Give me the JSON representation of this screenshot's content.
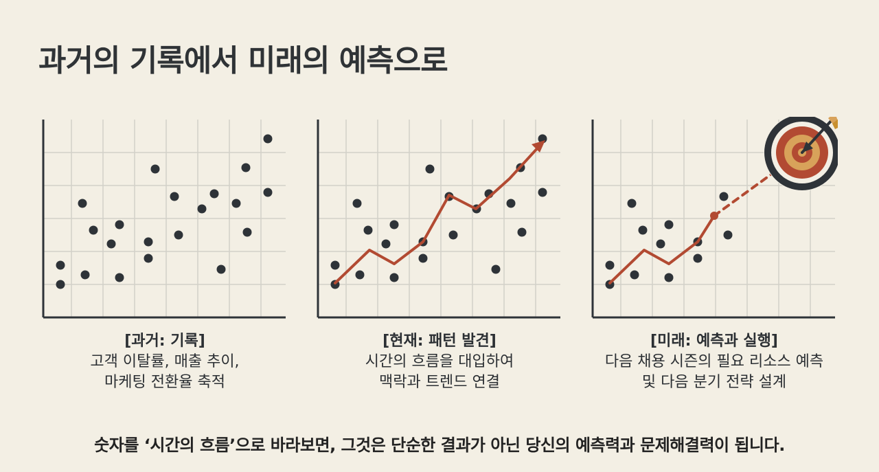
{
  "title": "과거의 기록에서 미래의 예측으로",
  "colors": {
    "background": "#f3efe4",
    "dot": "#2e3338",
    "trend": "#b24a32",
    "grid": "#d2d0c8",
    "axis": "#2e3338",
    "target_outer": "#2e3338",
    "target_red": "#b24a32",
    "target_gold": "#d8a25a"
  },
  "panels": [
    {
      "key": "past",
      "heading": "[과거: 기록]",
      "lines": [
        "고객 이탈률, 매출 추이,",
        "마케팅 전환율 축적"
      ],
      "has_trend": false,
      "has_target": false
    },
    {
      "key": "present",
      "heading": "[현재: 패턴 발견]",
      "lines": [
        "시간의 흐름을 대입하여",
        "맥락과 트렌드 연결"
      ],
      "has_trend": true,
      "has_target": false
    },
    {
      "key": "future",
      "heading": "[미래: 예측과 실행]",
      "lines": [
        "다음 채용 시즌의 필요 리소스 예측",
        "및 다음 분기 전략 설계"
      ],
      "has_trend": true,
      "has_target": true
    }
  ],
  "footer": "숫자를 ‘시간의 흐름’으로 바라보면, 그것은 단순한 결과가 아닌 당신의 예측력과 문제해결력이 됩니다."
}
